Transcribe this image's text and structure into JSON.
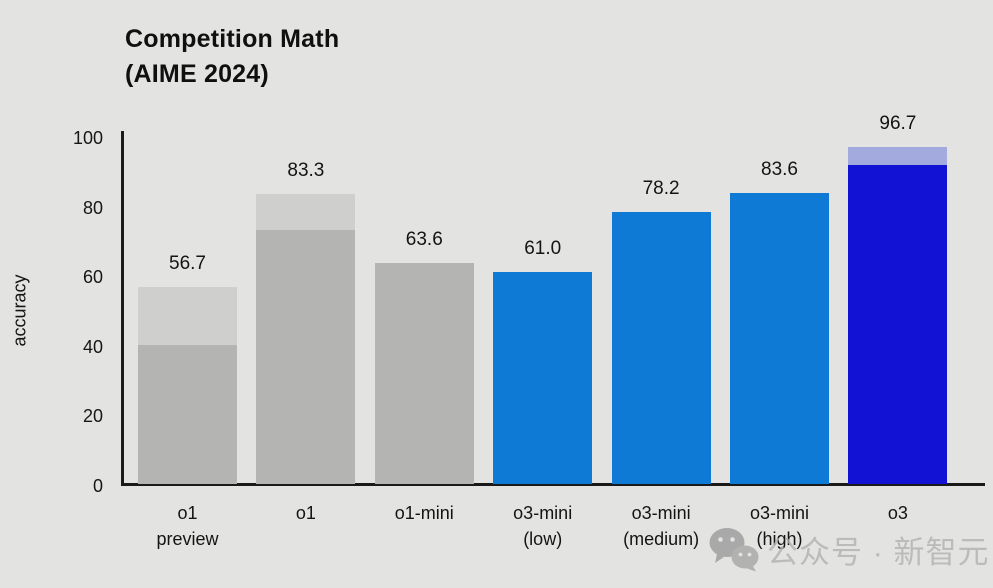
{
  "title": {
    "line1": "Competition Math",
    "line2": "(AIME 2024)"
  },
  "chart_data": {
    "type": "bar",
    "title": "Competition Math (AIME 2024)",
    "xlabel": "",
    "ylabel": "accuracy",
    "ylim": [
      0,
      100
    ],
    "yticks": [
      0,
      20,
      40,
      60,
      80,
      100
    ],
    "grid": false,
    "legend": "none",
    "categories": [
      "o1 preview",
      "o1",
      "o1-mini",
      "o3-mini (low)",
      "o3-mini (medium)",
      "o3-mini (high)",
      "o3"
    ],
    "series": [
      {
        "name": "solid-lower-segment",
        "values": [
          40,
          73,
          63.6,
          61.0,
          78.2,
          83.6,
          91.6
        ]
      },
      {
        "name": "total-including-light-top-segment",
        "values": [
          56.7,
          83.3,
          63.6,
          61.0,
          78.2,
          83.6,
          96.7
        ]
      }
    ],
    "bar_value_labels": [
      "56.7",
      "83.3",
      "63.6",
      "61.0",
      "78.2",
      "83.6",
      "96.7"
    ],
    "bars": [
      {
        "category_line1": "o1",
        "category_line2": "preview",
        "value_label": "56.7",
        "total": 56.7,
        "solid": 40,
        "solid_color": "#b4b4b3",
        "light_color": "#cfcfce"
      },
      {
        "category_line1": "o1",
        "category_line2": "",
        "value_label": "83.3",
        "total": 83.3,
        "solid": 73,
        "solid_color": "#b4b4b3",
        "light_color": "#cfcfce"
      },
      {
        "category_line1": "o1-mini",
        "category_line2": "",
        "value_label": "63.6",
        "total": 63.6,
        "solid": 63.6,
        "solid_color": "#b4b4b3",
        "light_color": "#b4b4b3"
      },
      {
        "category_line1": "o3-mini",
        "category_line2": "(low)",
        "value_label": "61.0",
        "total": 61.0,
        "solid": 61.0,
        "solid_color": "#0e7ad6",
        "light_color": "#0e7ad6"
      },
      {
        "category_line1": "o3-mini",
        "category_line2": "(medium)",
        "value_label": "78.2",
        "total": 78.2,
        "solid": 78.2,
        "solid_color": "#0e7ad6",
        "light_color": "#0e7ad6"
      },
      {
        "category_line1": "o3-mini",
        "category_line2": "(high)",
        "value_label": "83.6",
        "total": 83.6,
        "solid": 83.6,
        "solid_color": "#0e7ad6",
        "light_color": "#0e7ad6"
      },
      {
        "category_line1": "o3",
        "category_line2": "",
        "value_label": "96.7",
        "total": 96.7,
        "solid": 91.6,
        "solid_color": "#1212d4",
        "light_color": "#a3abde"
      }
    ]
  },
  "watermark": {
    "icon": "wechat-icon",
    "text": "公众号 · 新智元"
  },
  "colors": {
    "background": "#e3e3e2",
    "axis": "#1a1a1a",
    "text": "#111111",
    "bar_gray_solid": "#b4b4b3",
    "bar_gray_light": "#cfcfce",
    "bar_blue": "#0e7ad6",
    "bar_navy": "#1212d4",
    "bar_periwinkle": "#a3abde",
    "watermark_gray": "#b2b2b2"
  }
}
